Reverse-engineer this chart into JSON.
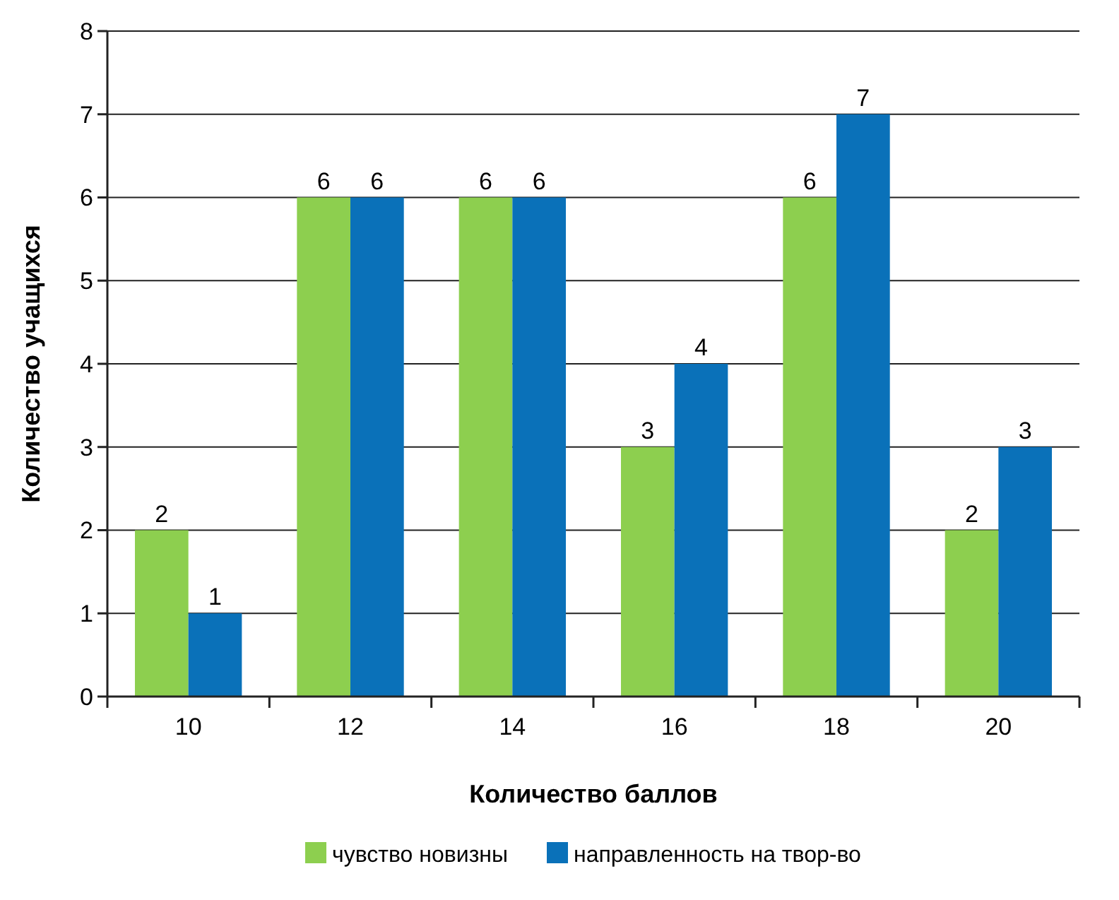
{
  "chart_data": {
    "type": "bar",
    "xlabel": "Количество баллов",
    "ylabel": "Количество учащихся",
    "categories": [
      "10",
      "12",
      "14",
      "16",
      "18",
      "20"
    ],
    "series": [
      {
        "name": "чувство новизны",
        "color": "#8dcf4f",
        "values": [
          2,
          6,
          6,
          3,
          6,
          2
        ]
      },
      {
        "name": "направленность на твор-во",
        "color": "#0a71b9",
        "values": [
          1,
          6,
          6,
          4,
          7,
          3
        ]
      }
    ],
    "ylim": [
      0,
      8
    ],
    "yticks": [
      0,
      1,
      2,
      3,
      4,
      5,
      6,
      7,
      8
    ],
    "grid": "y",
    "legend": "bottom",
    "data_labels": true
  }
}
